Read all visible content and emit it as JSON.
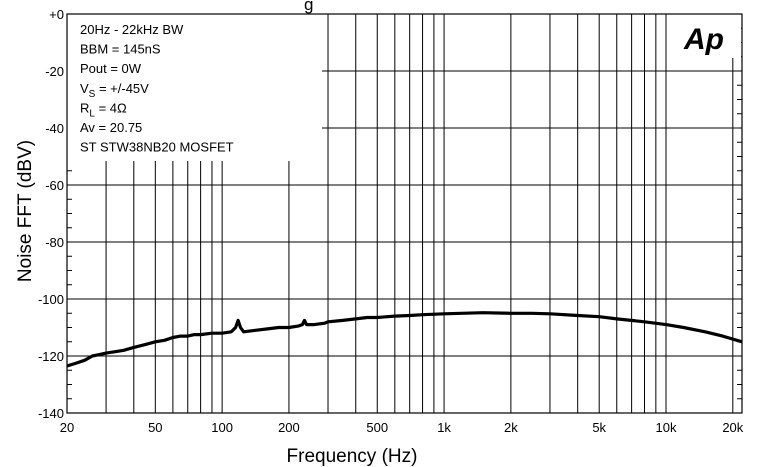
{
  "chart_data": {
    "type": "line",
    "title_fragment": "g",
    "xlabel": "Frequency (Hz)",
    "ylabel": "Noise FFT (dBV)",
    "x_scale": "log",
    "xlim": [
      20,
      22000
    ],
    "ylim": [
      -140,
      0
    ],
    "grid": true,
    "x_ticks": [
      {
        "value": 20,
        "label": "20"
      },
      {
        "value": 50,
        "label": "50"
      },
      {
        "value": 100,
        "label": "100"
      },
      {
        "value": 200,
        "label": "200"
      },
      {
        "value": 500,
        "label": "500"
      },
      {
        "value": 1000,
        "label": "1k"
      },
      {
        "value": 2000,
        "label": "2k"
      },
      {
        "value": 5000,
        "label": "5k"
      },
      {
        "value": 10000,
        "label": "10k"
      },
      {
        "value": 20000,
        "label": "20k"
      }
    ],
    "y_ticks": [
      {
        "value": 0,
        "label": "+0"
      },
      {
        "value": -20,
        "label": "-20"
      },
      {
        "value": -40,
        "label": "-40"
      },
      {
        "value": -60,
        "label": "-60"
      },
      {
        "value": -80,
        "label": "-80"
      },
      {
        "value": -100,
        "label": "-100"
      },
      {
        "value": -120,
        "label": "-120"
      },
      {
        "value": -140,
        "label": "-140"
      }
    ],
    "annotations": [
      {
        "text": "20Hz - 22kHz BW"
      },
      {
        "text": "BBM = 145nS"
      },
      {
        "text": "Pout = 0W"
      },
      {
        "text": "V",
        "sub": "S",
        "rest": " = +/-45V"
      },
      {
        "text": "R",
        "sub": "L",
        "rest": " = 4Ω"
      },
      {
        "text": "Av = 20.75"
      },
      {
        "text": "ST STW38NB20 MOSFET"
      }
    ],
    "logo": "Ap",
    "series": [
      {
        "color": "#000000",
        "points": [
          [
            20,
            -123.5
          ],
          [
            22,
            -122.5
          ],
          [
            24,
            -121.5
          ],
          [
            26,
            -120
          ],
          [
            28,
            -119.5
          ],
          [
            30,
            -119
          ],
          [
            33,
            -118.5
          ],
          [
            36,
            -118
          ],
          [
            40,
            -117
          ],
          [
            45,
            -116
          ],
          [
            50,
            -115
          ],
          [
            55,
            -114.5
          ],
          [
            60,
            -113.5
          ],
          [
            65,
            -113
          ],
          [
            70,
            -113
          ],
          [
            75,
            -112.5
          ],
          [
            80,
            -112.5
          ],
          [
            90,
            -112
          ],
          [
            100,
            -112
          ],
          [
            110,
            -111.5
          ],
          [
            115,
            -110
          ],
          [
            118,
            -107.5
          ],
          [
            121,
            -110
          ],
          [
            125,
            -111.5
          ],
          [
            140,
            -111
          ],
          [
            160,
            -110.5
          ],
          [
            180,
            -110
          ],
          [
            200,
            -110
          ],
          [
            220,
            -109.5
          ],
          [
            230,
            -109
          ],
          [
            235,
            -107.5
          ],
          [
            240,
            -109
          ],
          [
            260,
            -109
          ],
          [
            290,
            -108.5
          ],
          [
            300,
            -108
          ],
          [
            350,
            -107.5
          ],
          [
            400,
            -107
          ],
          [
            450,
            -106.5
          ],
          [
            500,
            -106.5
          ],
          [
            600,
            -106
          ],
          [
            700,
            -105.8
          ],
          [
            800,
            -105.5
          ],
          [
            1000,
            -105.2
          ],
          [
            1200,
            -105
          ],
          [
            1500,
            -104.8
          ],
          [
            2000,
            -105
          ],
          [
            2500,
            -105
          ],
          [
            3000,
            -105.2
          ],
          [
            4000,
            -105.8
          ],
          [
            5000,
            -106.2
          ],
          [
            6000,
            -107
          ],
          [
            8000,
            -108
          ],
          [
            10000,
            -109
          ],
          [
            12000,
            -110
          ],
          [
            15000,
            -111.5
          ],
          [
            18000,
            -113
          ],
          [
            22000,
            -115
          ]
        ]
      }
    ]
  }
}
